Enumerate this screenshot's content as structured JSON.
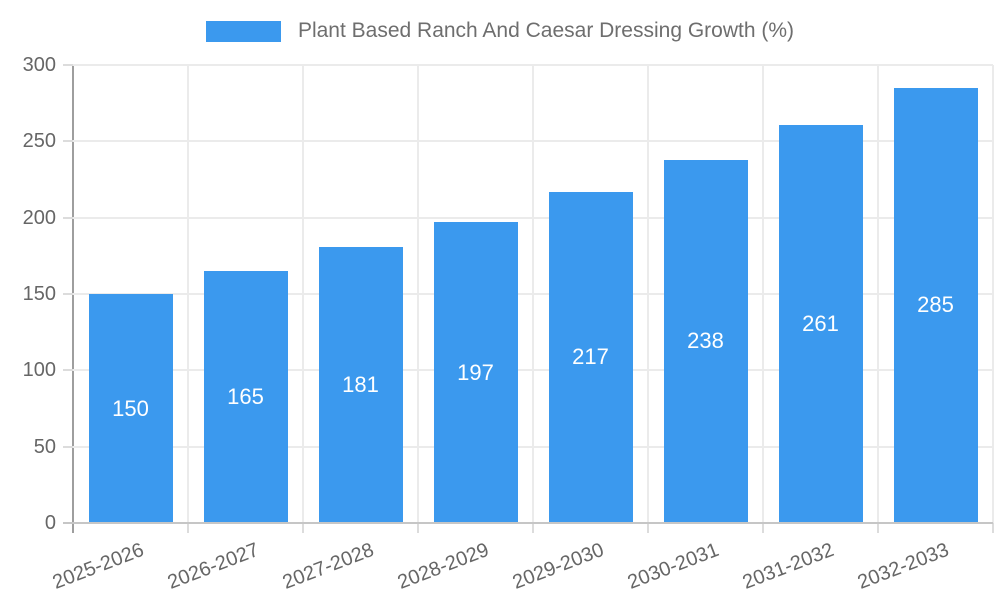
{
  "chart_data": {
    "type": "bar",
    "title": "Plant Based Ranch And Caesar Dressing Growth (%)",
    "categories": [
      "2025-2026",
      "2026-2027",
      "2027-2028",
      "2028-2029",
      "2029-2030",
      "2030-2031",
      "2031-2032",
      "2032-2033"
    ],
    "series": [
      {
        "name": "Plant Based Ranch And Caesar Dressing Growth (%)",
        "values": [
          150,
          165,
          181,
          197,
          217,
          238,
          261,
          285
        ],
        "color": "#3b99ee"
      }
    ],
    "value_labels": {
      "shown": true,
      "color": "#ffffff",
      "position": "center-of-bar"
    },
    "xlabel": "",
    "ylabel": "",
    "ylim": [
      0,
      300
    ],
    "yticks": [
      0,
      50,
      100,
      150,
      200,
      250,
      300
    ],
    "grid": true,
    "legend_position": "top-center"
  },
  "colors": {
    "bar": "#3b99ee",
    "bar_value_text": "#ffffff",
    "tick_text": "#666666",
    "legend_text": "#6e6e6e"
  }
}
